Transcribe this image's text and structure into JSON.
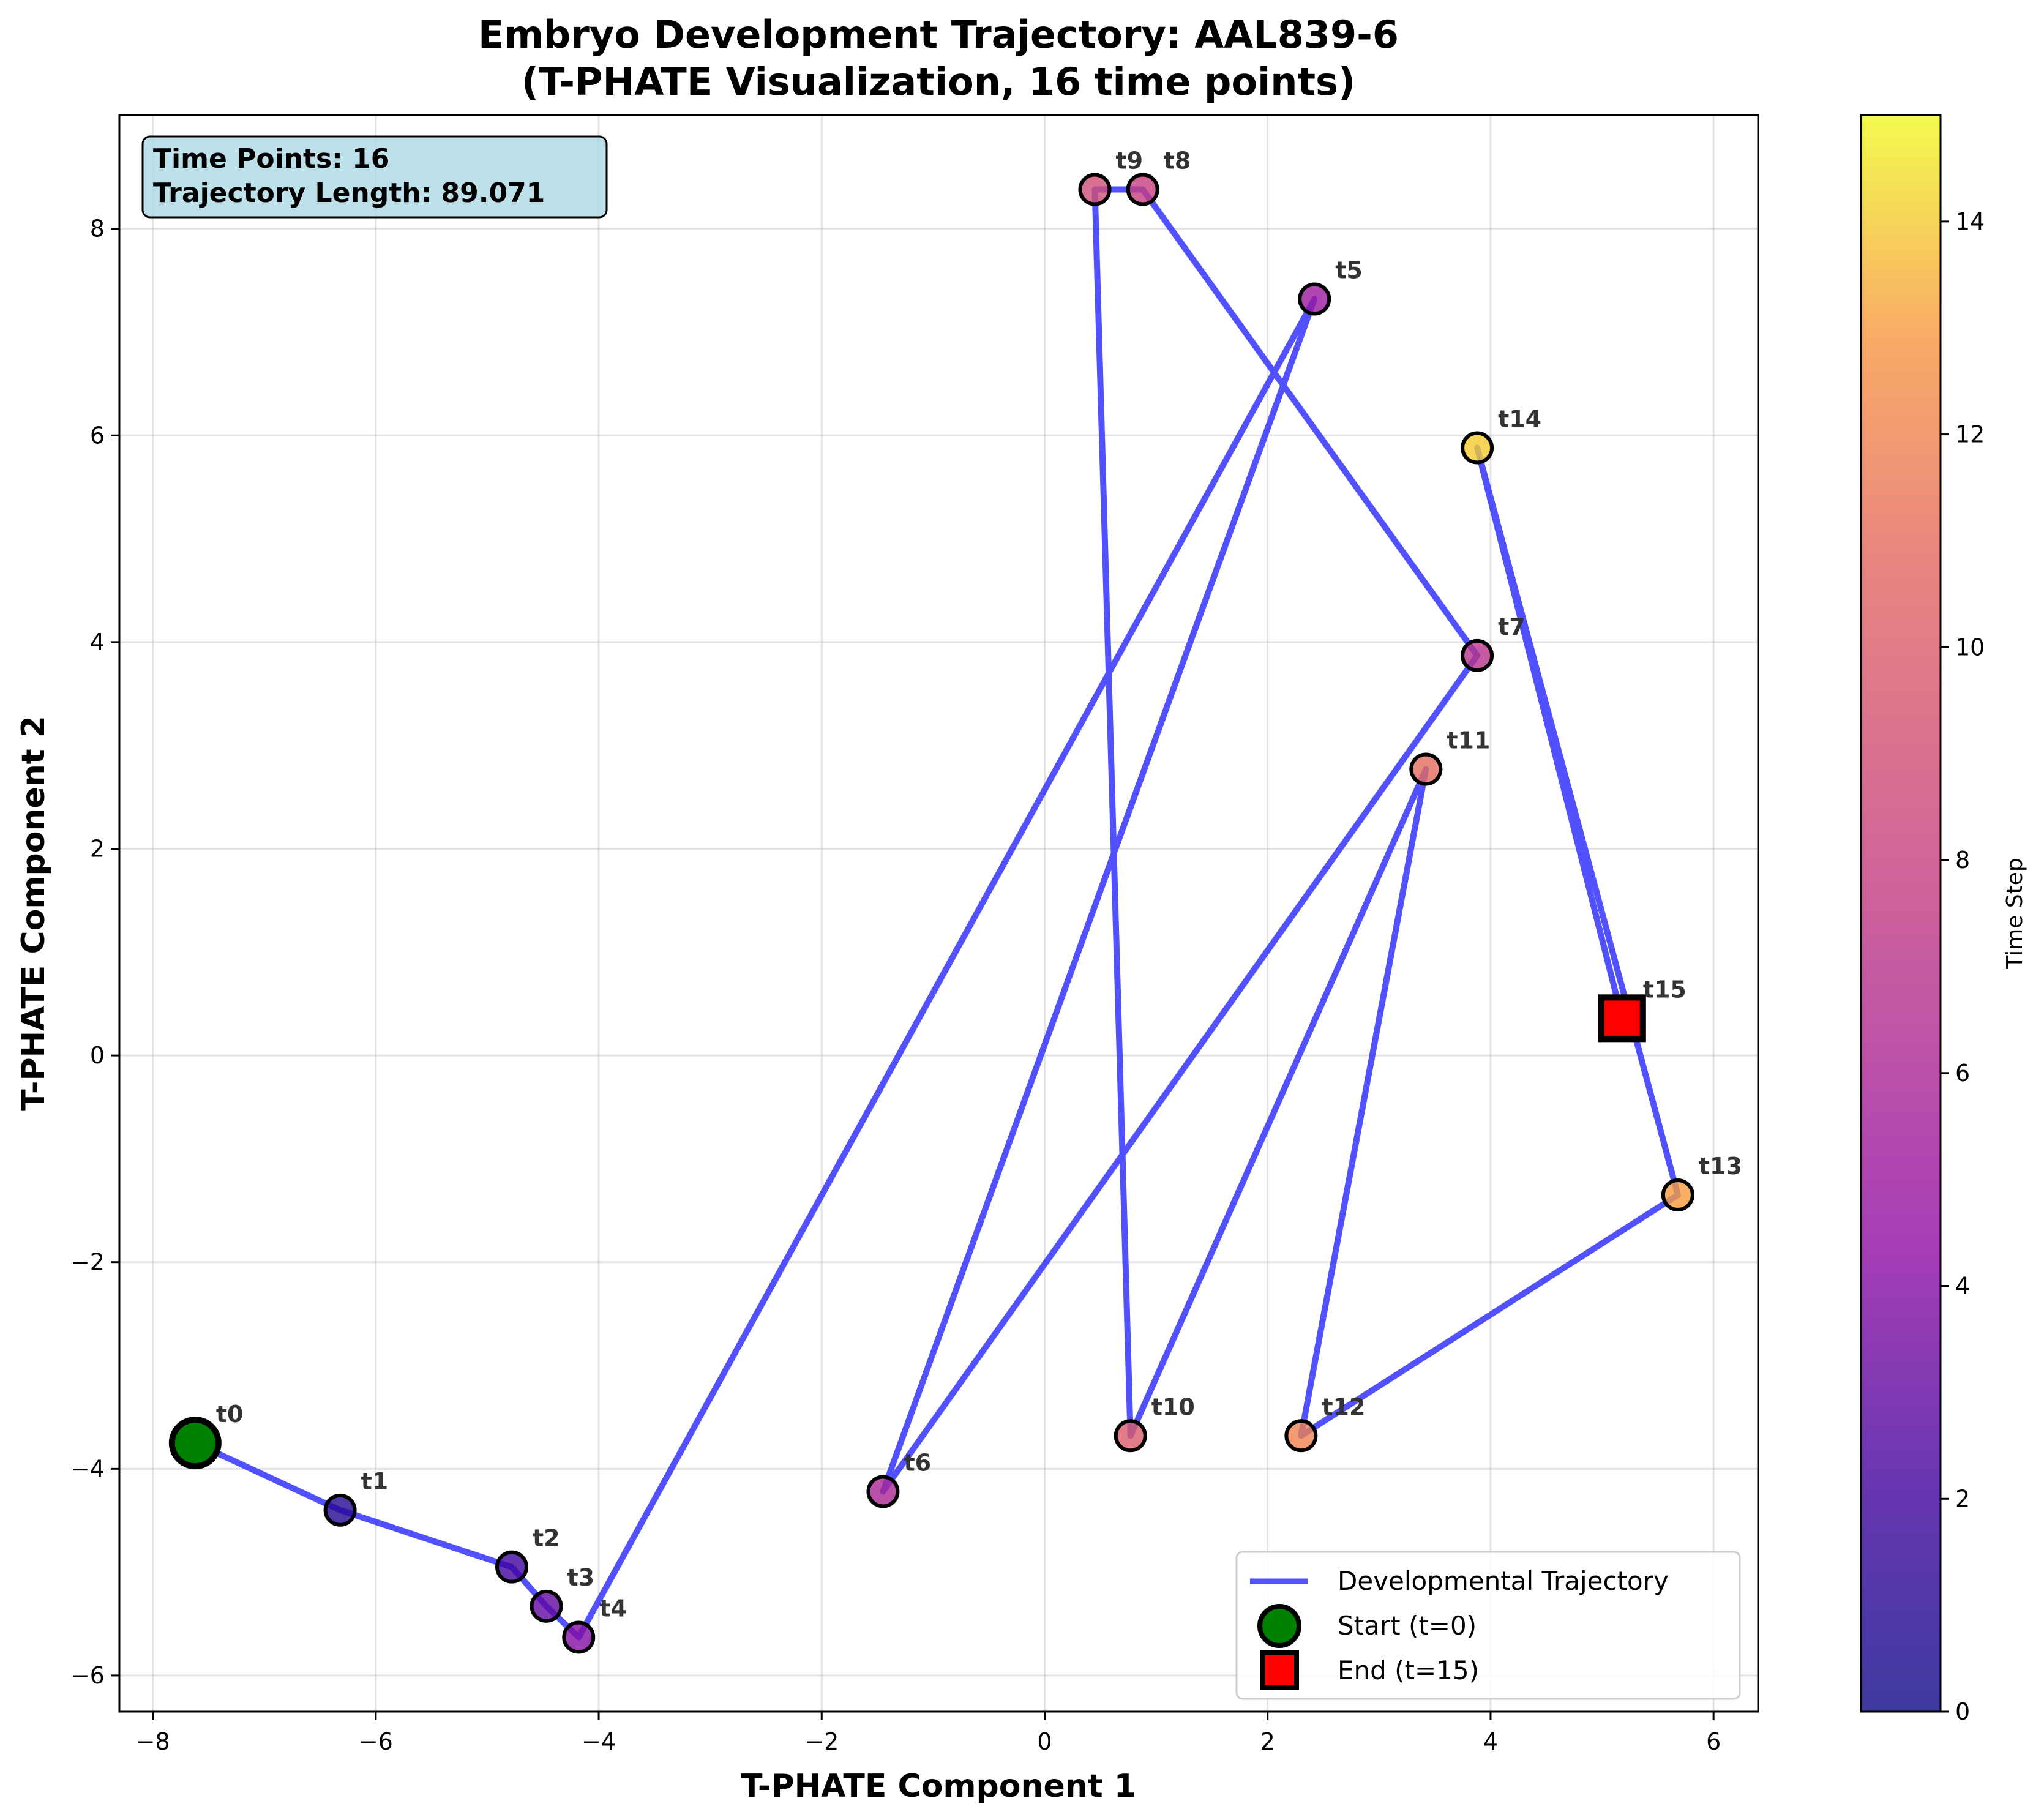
{
  "chart_data": {
    "type": "scatter",
    "title": "Embryo Development Trajectory: AAL839-6",
    "subtitle": "(T-PHATE Visualization, 16 time points)",
    "xlabel": "T-PHATE Component 1",
    "ylabel": "T-PHATE Component 2",
    "xlim": [
      -8.3,
      6.4
    ],
    "ylim": [
      -6.35,
      9.1
    ],
    "xticks": [
      -8,
      -6,
      -4,
      -2,
      0,
      2,
      4,
      6
    ],
    "yticks": [
      -6,
      -4,
      -2,
      0,
      2,
      4,
      6,
      8
    ],
    "grid": true,
    "series": [
      {
        "name": "Developmental Trajectory",
        "color": "#3333ff",
        "points": [
          {
            "label": "t0",
            "t": 0,
            "x": -7.62,
            "y": -3.75
          },
          {
            "label": "t1",
            "t": 1,
            "x": -6.32,
            "y": -4.4
          },
          {
            "label": "t2",
            "t": 2,
            "x": -4.78,
            "y": -4.95
          },
          {
            "label": "t3",
            "t": 3,
            "x": -4.47,
            "y": -5.33
          },
          {
            "label": "t4",
            "t": 4,
            "x": -4.18,
            "y": -5.63
          },
          {
            "label": "t5",
            "t": 5,
            "x": 2.42,
            "y": 7.32
          },
          {
            "label": "t6",
            "t": 6,
            "x": -1.45,
            "y": -4.22
          },
          {
            "label": "t7",
            "t": 7,
            "x": 3.88,
            "y": 3.87
          },
          {
            "label": "t8",
            "t": 8,
            "x": 0.88,
            "y": 8.38
          },
          {
            "label": "t9",
            "t": 9,
            "x": 0.45,
            "y": 8.38
          },
          {
            "label": "t10",
            "t": 10,
            "x": 0.77,
            "y": -3.68
          },
          {
            "label": "t11",
            "t": 11,
            "x": 3.42,
            "y": 2.77
          },
          {
            "label": "t12",
            "t": 12,
            "x": 2.3,
            "y": -3.68
          },
          {
            "label": "t13",
            "t": 13,
            "x": 5.68,
            "y": -1.35
          },
          {
            "label": "t14",
            "t": 14,
            "x": 3.88,
            "y": 5.88
          },
          {
            "label": "t15",
            "t": 15,
            "x": 5.18,
            "y": 0.36
          }
        ]
      }
    ],
    "legend": {
      "placement": "lower-right",
      "entries": [
        {
          "label": "Developmental Trajectory",
          "marker": "line",
          "color": "#3333ff"
        },
        {
          "label": "Start (t=0)",
          "marker": "circle",
          "color": "#008000"
        },
        {
          "label": "End (t=15)",
          "marker": "square",
          "color": "#ff0000"
        }
      ]
    },
    "info_box": {
      "line1": "Time Points: 16",
      "line2": "Trajectory Length: 89.071",
      "background": "#add8e6"
    },
    "colorbar": {
      "label": "Time Step",
      "colormap": "plasma",
      "min": 0,
      "max": 15,
      "ticks": [
        0,
        2,
        4,
        6,
        8,
        10,
        12,
        14
      ]
    }
  }
}
